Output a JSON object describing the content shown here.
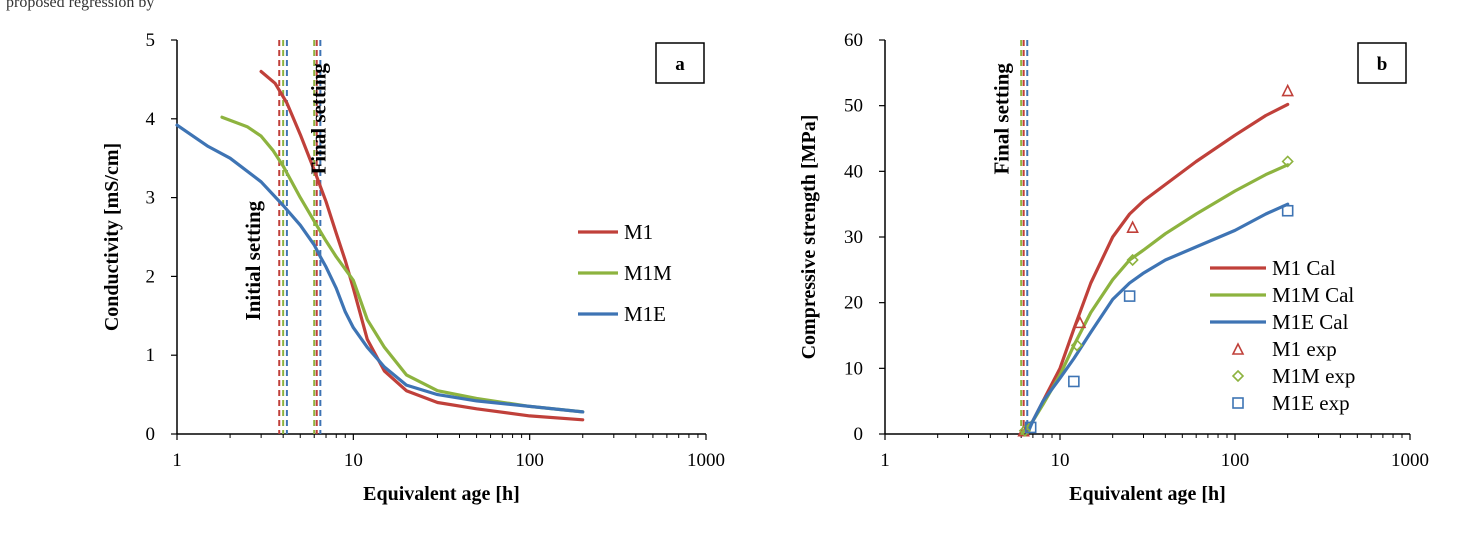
{
  "page": {
    "top_text": "proposed regression by"
  },
  "colors": {
    "M1": "#c0403a",
    "M1M": "#8db33f",
    "M1E": "#3e74b4"
  },
  "chart_data": [
    {
      "type": "line",
      "panel_label": "a",
      "xlabel": "Equivalent age [h]",
      "ylabel": "Conductivity [mS/cm]",
      "xscale": "log",
      "xlim": [
        1,
        1000
      ],
      "ylim": [
        0,
        5
      ],
      "xticks": [
        "1",
        "10",
        "100",
        "1000"
      ],
      "xtick_values": [
        1,
        10,
        100,
        1000
      ],
      "yticks": [
        "0",
        "1",
        "2",
        "3",
        "4",
        "5"
      ],
      "ytick_values": [
        0,
        1,
        2,
        3,
        4,
        5
      ],
      "legend_position": "right",
      "annotations": [
        {
          "text": "Initial setting",
          "x": 3.2,
          "y": 2.2
        },
        {
          "text": "Final setting",
          "x": 7.5,
          "y": 4.0
        }
      ],
      "setting_lines": [
        {
          "series": "M1",
          "x": 3.8
        },
        {
          "series": "M1M",
          "x": 4.0
        },
        {
          "series": "M1E",
          "x": 4.2
        },
        {
          "series": "M1M",
          "x": 6.0
        },
        {
          "series": "M1",
          "x": 6.2
        },
        {
          "series": "M1E",
          "x": 6.5
        }
      ],
      "series": [
        {
          "name": "M1",
          "color_key": "M1",
          "x": [
            3,
            3.6,
            4.2,
            5,
            6,
            7,
            8,
            9,
            10,
            12,
            15,
            20,
            30,
            50,
            100,
            200
          ],
          "y": [
            4.6,
            4.45,
            4.2,
            3.8,
            3.35,
            2.95,
            2.55,
            2.2,
            1.85,
            1.2,
            0.8,
            0.55,
            0.4,
            0.32,
            0.23,
            0.18
          ]
        },
        {
          "name": "M1M",
          "color_key": "M1M",
          "x": [
            1.8,
            2.5,
            3,
            3.5,
            4,
            5,
            6,
            7,
            8,
            10,
            12,
            15,
            20,
            30,
            50,
            100,
            200
          ],
          "y": [
            4.02,
            3.9,
            3.78,
            3.6,
            3.4,
            3.0,
            2.7,
            2.45,
            2.25,
            1.95,
            1.45,
            1.1,
            0.75,
            0.55,
            0.45,
            0.35,
            0.28
          ]
        },
        {
          "name": "M1E",
          "color_key": "M1E",
          "x": [
            1,
            1.5,
            2,
            3,
            4,
            5,
            6,
            6.5,
            7,
            8,
            9,
            10,
            12,
            15,
            20,
            30,
            50,
            100,
            200
          ],
          "y": [
            3.92,
            3.65,
            3.5,
            3.2,
            2.9,
            2.65,
            2.4,
            2.25,
            2.12,
            1.85,
            1.55,
            1.35,
            1.1,
            0.85,
            0.62,
            0.5,
            0.42,
            0.35,
            0.28
          ]
        }
      ]
    },
    {
      "type": "line",
      "panel_label": "b",
      "xlabel": "Equivalent age [h]",
      "ylabel": "Compressive strength [MPa]",
      "xscale": "log",
      "xlim": [
        1,
        1000
      ],
      "ylim": [
        0,
        60
      ],
      "xticks": [
        "1",
        "10",
        "100",
        "1000"
      ],
      "xtick_values": [
        1,
        10,
        100,
        1000
      ],
      "yticks": [
        "0",
        "10",
        "20",
        "30",
        "40",
        "50",
        "60"
      ],
      "ytick_values": [
        0,
        10,
        20,
        30,
        40,
        50,
        60
      ],
      "legend_position": "right",
      "annotations": [
        {
          "text": "Final setting",
          "x": 5.5,
          "y": 48
        }
      ],
      "setting_lines": [
        {
          "series": "M1M",
          "x": 6.0
        },
        {
          "series": "M1",
          "x": 6.2
        },
        {
          "series": "M1E",
          "x": 6.5
        }
      ],
      "series": [
        {
          "name": "M1 Cal",
          "color_key": "M1",
          "kind": "line",
          "x": [
            6,
            7,
            8,
            10,
            12,
            15,
            20,
            25,
            30,
            40,
            60,
            100,
            150,
            200
          ],
          "y": [
            0,
            2,
            5,
            10,
            16,
            23,
            30,
            33.5,
            35.5,
            38,
            41.5,
            45.5,
            48.5,
            50.2
          ]
        },
        {
          "name": "M1M Cal",
          "color_key": "M1M",
          "kind": "line",
          "x": [
            6,
            7,
            8,
            10,
            12,
            15,
            20,
            25,
            30,
            40,
            60,
            100,
            150,
            200
          ],
          "y": [
            0,
            2,
            4.5,
            9,
            13.5,
            18.5,
            23.5,
            26.5,
            28,
            30.5,
            33.5,
            37,
            39.5,
            41
          ]
        },
        {
          "name": "M1E Cal",
          "color_key": "M1E",
          "kind": "line",
          "x": [
            6.5,
            7,
            8,
            10,
            12,
            15,
            20,
            25,
            30,
            40,
            60,
            100,
            150,
            200
          ],
          "y": [
            0,
            2,
            5,
            8.5,
            11.5,
            15.5,
            20.5,
            23,
            24.5,
            26.5,
            28.5,
            31,
            33.5,
            35
          ]
        },
        {
          "name": "M1 exp",
          "color_key": "M1",
          "kind": "marker",
          "marker": "triangle",
          "x": [
            6.2,
            13,
            26,
            200
          ],
          "y": [
            0.5,
            17,
            31.5,
            52.3
          ]
        },
        {
          "name": "M1M exp",
          "color_key": "M1M",
          "kind": "marker",
          "marker": "diamond",
          "x": [
            6.3,
            12.5,
            26,
            200
          ],
          "y": [
            0.5,
            13.5,
            26.5,
            41.5
          ]
        },
        {
          "name": "M1E exp",
          "color_key": "M1E",
          "kind": "marker",
          "marker": "square",
          "x": [
            6.8,
            12,
            25,
            200
          ],
          "y": [
            1,
            8,
            21,
            34
          ]
        }
      ]
    }
  ]
}
